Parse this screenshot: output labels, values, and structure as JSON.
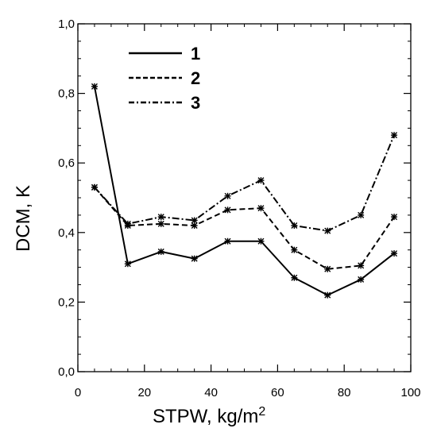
{
  "chart_data": {
    "type": "line",
    "xlabel": "STPW, kg/m",
    "xlabel_superscript": "2",
    "ylabel": "DCM, K",
    "xlim": [
      0,
      100
    ],
    "ylim": [
      0.0,
      1.0
    ],
    "xticks": [
      0,
      20,
      40,
      60,
      80,
      100
    ],
    "xtick_labels": [
      "0",
      "20",
      "40",
      "60",
      "80",
      "100"
    ],
    "yticks": [
      0.0,
      0.2,
      0.4,
      0.6,
      0.8,
      1.0
    ],
    "ytick_labels": [
      "0,0",
      "0,2",
      "0,4",
      "0,6",
      "0,8",
      "1,0"
    ],
    "grid": false,
    "legend_position": "top-left",
    "x": [
      5,
      15,
      25,
      35,
      45,
      55,
      65,
      75,
      85,
      95
    ],
    "series": [
      {
        "name": "1",
        "style": "solid",
        "color": "#000000",
        "values": [
          0.82,
          0.31,
          0.345,
          0.325,
          0.375,
          0.375,
          0.27,
          0.22,
          0.265,
          0.34
        ]
      },
      {
        "name": "2",
        "style": "dashed",
        "color": "#000000",
        "values": [
          0.53,
          0.42,
          0.425,
          0.42,
          0.465,
          0.47,
          0.35,
          0.295,
          0.305,
          0.445
        ]
      },
      {
        "name": "3",
        "style": "dashdot",
        "color": "#000000",
        "values": [
          0.53,
          0.425,
          0.445,
          0.435,
          0.505,
          0.55,
          0.42,
          0.405,
          0.45,
          0.68
        ]
      }
    ]
  }
}
